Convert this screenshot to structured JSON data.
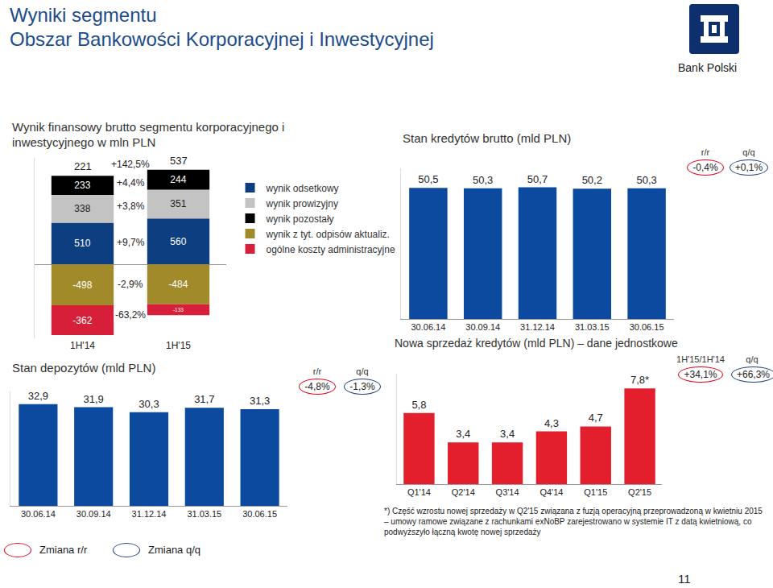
{
  "header": {
    "title_lines": [
      "Wyniki segmentu",
      "Obszar Bankowości Korporacyjnej i Inwestycyjnej"
    ],
    "logo_text": "Bank Polski",
    "page_number": "11"
  },
  "chart_data": [
    {
      "type": "bar",
      "stacked": true,
      "title": "Wynik finansowy brutto segmentu korporacyjnego i inwestycyjnego w mln PLN",
      "categories": [
        "1H'14",
        "1H'15"
      ],
      "series": [
        {
          "name": "wynik odsetkowy",
          "color": "#0d3f80",
          "values": [
            510,
            560
          ],
          "change_label": "+9,7%"
        },
        {
          "name": "wynik prowizyjny",
          "color": "#c3c3c3",
          "values": [
            338,
            351
          ],
          "change_label": "+3,8%"
        },
        {
          "name": "wynik pozostały",
          "color": "#000000",
          "values": [
            233,
            244
          ],
          "change_label": "+4,4%"
        },
        {
          "name": "wynik z tyt. odpisów aktualiz.",
          "color": "#a08a2a",
          "values": [
            -498,
            -484
          ],
          "change_label": "-2,9%"
        },
        {
          "name": "ogólne koszty administracyjne",
          "color": "#d81f3a",
          "values": [
            -362,
            -133
          ],
          "change_label": "-63,2%"
        }
      ],
      "totals": [
        221,
        537
      ],
      "total_change_label": "+142,5%",
      "ylim": [
        -900,
        1300
      ],
      "data_labels": true,
      "tick_labels": "x",
      "legend": "right"
    },
    {
      "type": "bar",
      "title": "Stan kredytów brutto (mld PLN)",
      "categories": [
        "30.06.14",
        "30.09.14",
        "31.12.14",
        "31.03.15",
        "30.06.15"
      ],
      "values": [
        50.5,
        50.3,
        50.7,
        50.2,
        50.3
      ],
      "value_labels": [
        "50,5",
        "50,3",
        "50,7",
        "50,2",
        "50,3"
      ],
      "color": "#0b4a9e",
      "ylim": [
        0,
        58
      ],
      "data_labels": true,
      "tick_labels": "x",
      "changes": [
        {
          "label": "r/r",
          "value_label": "-0,4%"
        },
        {
          "label": "q/q",
          "value_label": "+0,1%"
        }
      ]
    },
    {
      "type": "bar",
      "title": "Stan depozytów (mld PLN)",
      "categories": [
        "30.06.14",
        "30.09.14",
        "31.12.14",
        "31.03.15",
        "30.06.15"
      ],
      "values": [
        32.9,
        31.9,
        30.3,
        31.7,
        31.3
      ],
      "value_labels": [
        "32,9",
        "31,9",
        "30,3",
        "31,7",
        "31,3"
      ],
      "color": "#0b4a9e",
      "ylim": [
        0,
        37
      ],
      "data_labels": true,
      "tick_labels": "x",
      "changes": [
        {
          "label": "r/r",
          "value_label": "-4,8%"
        },
        {
          "label": "q/q",
          "value_label": "-1,3%"
        }
      ]
    },
    {
      "type": "bar",
      "title": "Nowa sprzedaż kredytów (mld PLN) – dane jednostkowe",
      "categories": [
        "Q1'14",
        "Q2'14",
        "Q3'14",
        "Q4'14",
        "Q1'15",
        "Q2'15"
      ],
      "values": [
        5.8,
        3.4,
        3.4,
        4.3,
        4.7,
        7.8
      ],
      "value_labels": [
        "5,8",
        "3,4",
        "3,4",
        "4,3",
        "4,7",
        "7,8*"
      ],
      "color": "#e31e2d",
      "ylim": [
        0,
        9
      ],
      "data_labels": true,
      "tick_labels": "x",
      "changes": [
        {
          "label": "1H'15/1H'14",
          "value_label": "+34,1%"
        },
        {
          "label": "q/q",
          "value_label": "+66,3%"
        }
      ],
      "note": "*) Część wzrostu nowej sprzedaży w Q2'15 związana z fuzją operacyjną przeprowadzoną w kwietniu 2015 – umowy ramowe związane z rachunkami exNoBP zarejestrowano w systemie IT z datą kwietniową, co podwyższyło łączną kwotę nowej sprzedaży"
    }
  ],
  "change_legend": [
    {
      "label": "Zmiana r/r",
      "color": "#e2001a"
    },
    {
      "label": "Zmiana q/q",
      "color": "#1f3d7a"
    }
  ]
}
